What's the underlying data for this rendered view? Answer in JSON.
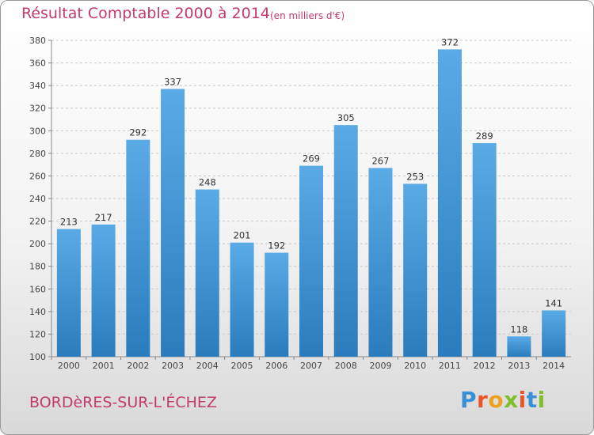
{
  "header": {
    "title": "Résultat Comptable 2000 à 2014",
    "subtitle": "(en milliers d'€)"
  },
  "footer": {
    "place": "BORDèRES-SUR-L'ÉCHEZ",
    "logo": "Proxiti"
  },
  "colors": {
    "title": "#c23b6c",
    "bar_top": "#5aaae6",
    "bar_bottom": "#2a7cbd",
    "grid": "#c8c8c8"
  },
  "chart_data": {
    "type": "bar",
    "title": "Résultat Comptable 2000 à 2014",
    "subtitle": "(en milliers d'€)",
    "categories": [
      "2000",
      "2001",
      "2002",
      "2003",
      "2004",
      "2005",
      "2006",
      "2007",
      "2008",
      "2009",
      "2010",
      "2011",
      "2012",
      "2013",
      "2014"
    ],
    "values": [
      213,
      217,
      292,
      337,
      248,
      201,
      192,
      269,
      305,
      267,
      253,
      372,
      289,
      118,
      141
    ],
    "xlabel": "",
    "ylabel": "",
    "ylim": [
      100,
      380
    ],
    "yticks": [
      100,
      120,
      140,
      160,
      180,
      200,
      220,
      240,
      260,
      280,
      300,
      320,
      340,
      360,
      380
    ],
    "grid": true,
    "legend": "none"
  }
}
